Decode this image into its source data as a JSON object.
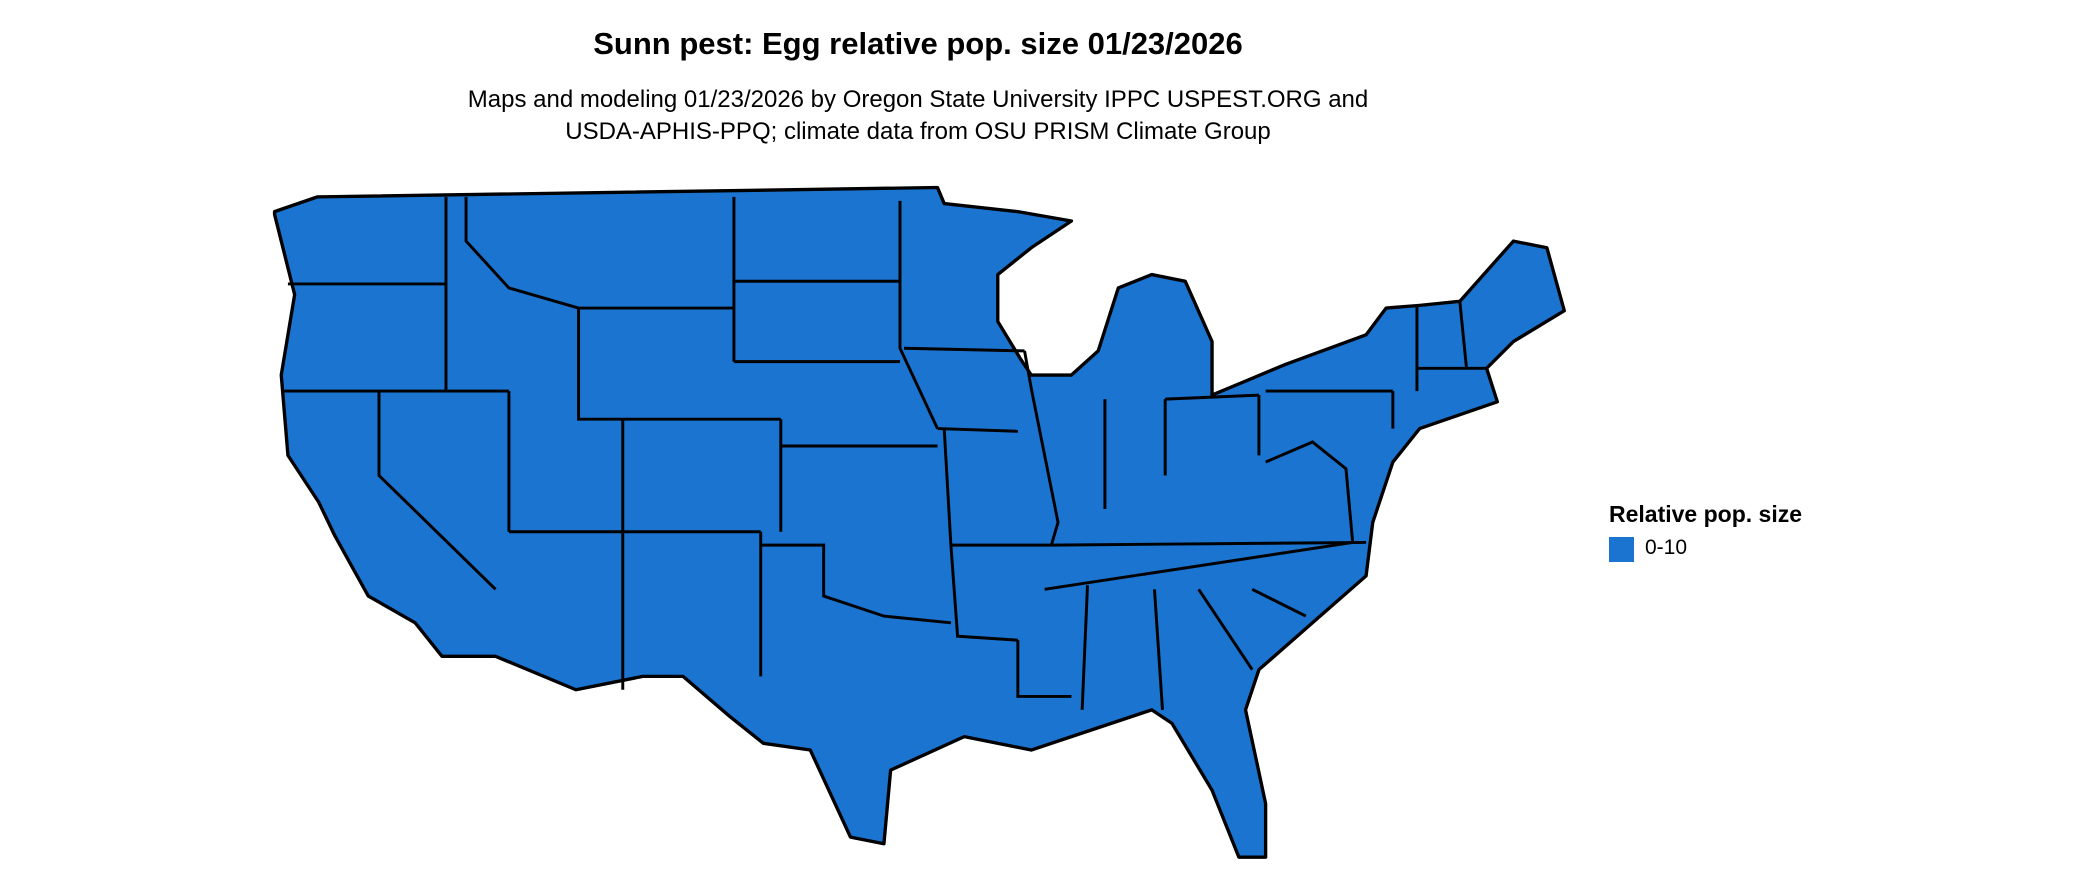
{
  "title": "Sunn pest: Egg relative pop. size 01/23/2026",
  "subtitle_line1": "Maps and modeling 01/23/2026 by Oregon State University IPPC USPEST.ORG and",
  "subtitle_line2": "USDA-APHIS-PPQ; climate data from OSU PRISM Climate Group",
  "map": {
    "region": "Contiguous United States",
    "fill_color": "#1a74d0",
    "border_color": "#000000"
  },
  "legend": {
    "title": "Relative pop. size",
    "items": [
      {
        "label": "0-10",
        "color": "#1a74d0"
      }
    ]
  }
}
